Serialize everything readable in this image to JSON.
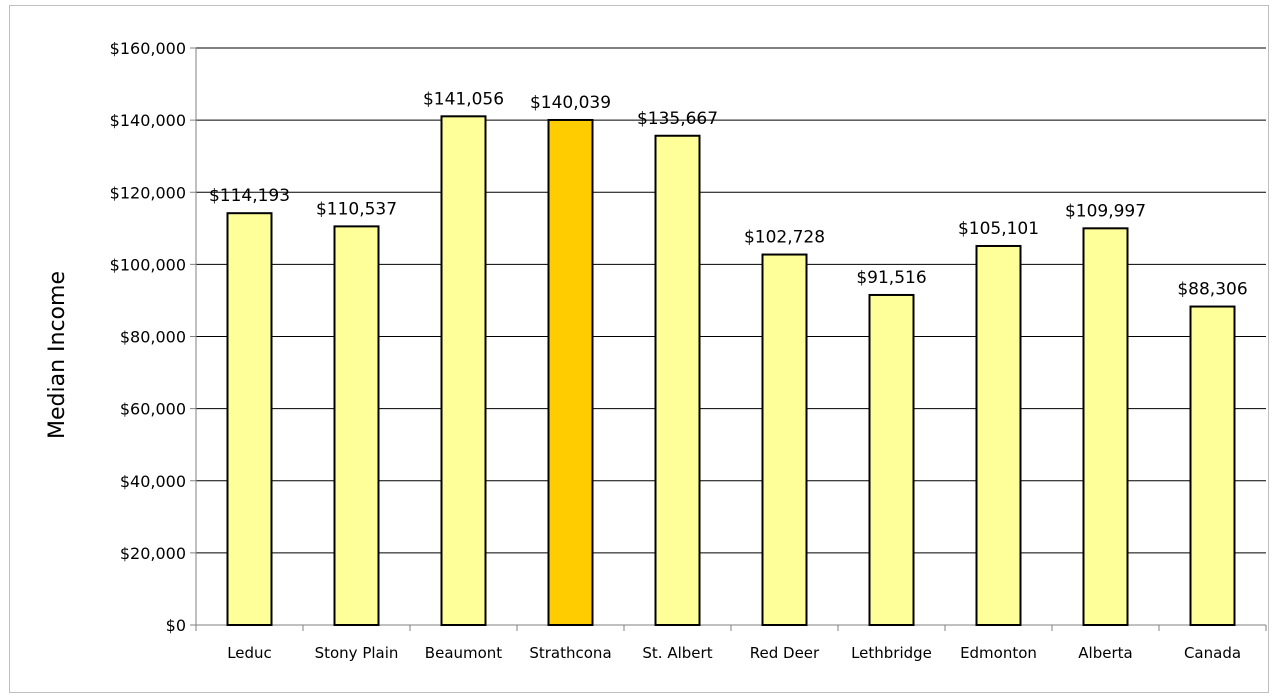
{
  "chart_data": {
    "type": "bar",
    "title": "",
    "xlabel": "",
    "ylabel": "Median Income",
    "ylim": [
      0,
      160000
    ],
    "y_ticks": [
      0,
      20000,
      40000,
      60000,
      80000,
      100000,
      120000,
      140000,
      160000
    ],
    "y_tick_labels": [
      "$0",
      "$20,000",
      "$40,000",
      "$60,000",
      "$80,000",
      "$100,000",
      "$120,000",
      "$140,000",
      "$160,000"
    ],
    "grid": true,
    "legend": "none",
    "categories": [
      "Leduc",
      "Stony Plain",
      "Beaumont",
      "Strathcona",
      "St. Albert",
      "Red Deer",
      "Lethbridge",
      "Edmonton",
      "Alberta",
      "Canada"
    ],
    "values": [
      114193,
      110537,
      141056,
      140039,
      135667,
      102728,
      91516,
      105101,
      109997,
      88306
    ],
    "data_labels": [
      "$114,193",
      "$110,537",
      "$141,056",
      "$140,039",
      "$135,667",
      "$102,728",
      "$91,516",
      "$105,101",
      "$109,997",
      "$88,306"
    ],
    "highlight_category": "Strathcona",
    "colors": {
      "bar": "#ffff99",
      "highlight": "#ffcc00",
      "bar_stroke": "#000000",
      "grid": "#000000",
      "axis": "#808080"
    }
  }
}
